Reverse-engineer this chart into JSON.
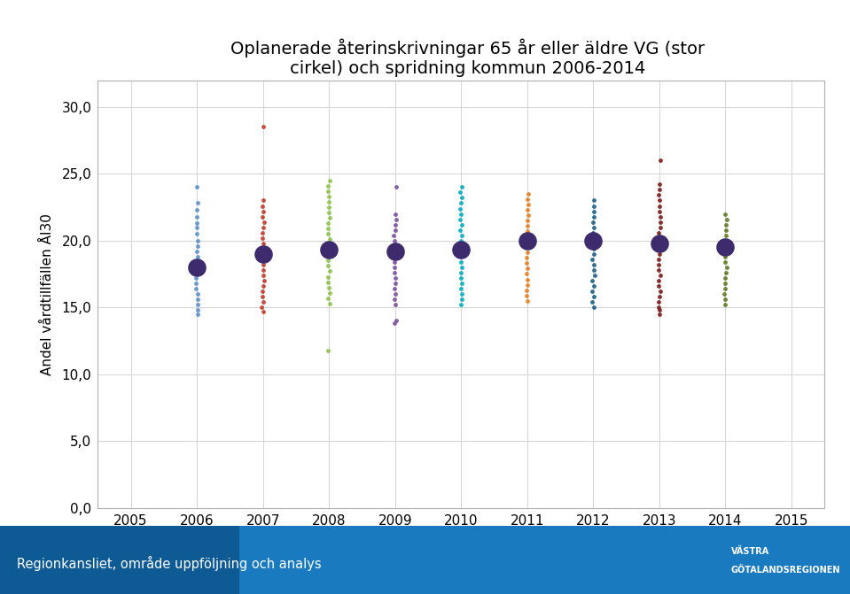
{
  "title": "Oplanerade återinskrivningar 65 år eller äldre VG (stor\ncirkel) och spridning kommun 2006-2014",
  "ylabel": "Andel vårdtillfällen ÅI30",
  "xlim": [
    2004.5,
    2015.5
  ],
  "ylim": [
    0,
    32
  ],
  "xticks": [
    2005,
    2006,
    2007,
    2008,
    2009,
    2010,
    2011,
    2012,
    2013,
    2014,
    2015
  ],
  "yticks": [
    0.0,
    5.0,
    10.0,
    15.0,
    20.0,
    25.0,
    30.0
  ],
  "ytick_labels": [
    "0,0",
    "5,0",
    "10,0",
    "15,0",
    "20,0",
    "25,0",
    "30,0"
  ],
  "background_color": "#ffffff",
  "grid_color": "#d3d3d3",
  "footer_color_left": "#1565a0",
  "footer_color_right": "#1e90d0",
  "footer_text": "Regionkansliet, område uppföljning och analys",
  "big_dot_color": "#3d2b6e",
  "years": [
    2006,
    2007,
    2008,
    2009,
    2010,
    2011,
    2012,
    2013,
    2014
  ],
  "vg_means": [
    18.0,
    19.0,
    19.3,
    19.2,
    19.3,
    20.0,
    20.0,
    19.8,
    19.5
  ],
  "scatter_data": {
    "2006": {
      "color": "#5b8fcc",
      "points": [
        24.0,
        22.8,
        22.3,
        21.8,
        21.3,
        21.0,
        20.5,
        20.0,
        19.6,
        19.2,
        18.8,
        18.4,
        18.0,
        17.6,
        17.2,
        16.8,
        16.4,
        16.0,
        15.6,
        15.2,
        14.8,
        14.5
      ]
    },
    "2007": {
      "color": "#c0392b",
      "points": [
        28.5,
        23.0,
        22.6,
        22.2,
        21.8,
        21.4,
        21.0,
        20.6,
        20.2,
        19.8,
        19.4,
        19.0,
        18.6,
        18.2,
        17.8,
        17.4,
        17.0,
        16.6,
        16.2,
        15.8,
        15.4,
        15.0,
        14.7
      ]
    },
    "2008": {
      "color": "#8bc34a",
      "points": [
        24.5,
        24.1,
        23.7,
        23.3,
        22.9,
        22.5,
        22.1,
        21.7,
        21.3,
        20.9,
        20.5,
        20.1,
        19.7,
        19.3,
        18.9,
        18.5,
        18.1,
        17.7,
        17.3,
        16.9,
        16.5,
        16.1,
        15.7,
        15.3,
        11.8
      ]
    },
    "2009": {
      "color": "#7b4fa0",
      "points": [
        24.0,
        22.0,
        21.6,
        21.2,
        20.8,
        20.4,
        20.0,
        19.6,
        19.2,
        18.8,
        18.4,
        18.0,
        17.6,
        17.2,
        16.8,
        16.4,
        16.0,
        15.6,
        15.2,
        14.0,
        13.8
      ]
    },
    "2010": {
      "color": "#00acc1",
      "points": [
        24.0,
        23.6,
        23.2,
        22.8,
        22.4,
        22.0,
        21.6,
        21.2,
        20.8,
        20.4,
        20.0,
        19.6,
        19.2,
        18.8,
        18.4,
        18.0,
        17.6,
        17.2,
        16.8,
        16.4,
        16.0,
        15.6,
        15.2
      ]
    },
    "2011": {
      "color": "#e67e22",
      "points": [
        23.5,
        23.1,
        22.7,
        22.3,
        21.9,
        21.5,
        21.1,
        20.7,
        20.3,
        19.9,
        19.5,
        19.1,
        18.7,
        18.3,
        17.9,
        17.5,
        17.1,
        16.7,
        16.3,
        15.9,
        15.5
      ]
    },
    "2012": {
      "color": "#1a5f8a",
      "points": [
        23.0,
        22.6,
        22.2,
        21.8,
        21.4,
        21.0,
        20.6,
        20.2,
        19.8,
        19.4,
        19.0,
        18.6,
        18.2,
        17.8,
        17.4,
        17.0,
        16.6,
        16.2,
        15.8,
        15.4,
        15.0
      ]
    },
    "2013": {
      "color": "#7b1a1a",
      "points": [
        26.0,
        24.2,
        23.8,
        23.4,
        23.0,
        22.6,
        22.2,
        21.8,
        21.4,
        21.0,
        20.6,
        20.2,
        19.8,
        19.4,
        19.0,
        18.6,
        18.2,
        17.8,
        17.4,
        17.0,
        16.6,
        16.2,
        15.8,
        15.4,
        15.0,
        14.8,
        14.5
      ]
    },
    "2014": {
      "color": "#5d7a1f",
      "points": [
        22.0,
        21.6,
        21.2,
        20.8,
        20.4,
        20.0,
        19.6,
        19.2,
        18.8,
        18.4,
        18.0,
        17.6,
        17.2,
        16.8,
        16.4,
        16.0,
        15.6,
        15.2
      ]
    }
  }
}
